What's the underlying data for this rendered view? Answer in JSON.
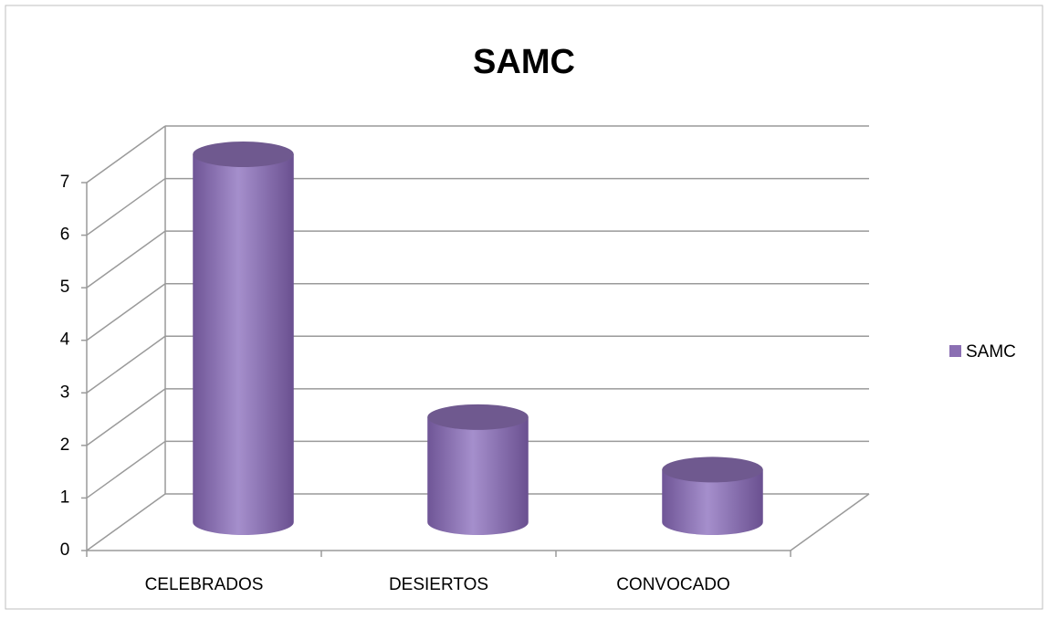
{
  "chart_data": {
    "type": "bar3d",
    "title": "SAMC",
    "categories": [
      "CELEBRADOS",
      "DESIERTOS",
      "CONVOCADO"
    ],
    "series": [
      {
        "name": "SAMC",
        "color": "#8b6fb3",
        "values": [
          7,
          2,
          1
        ]
      }
    ],
    "ylim": [
      0,
      7
    ],
    "yticks": [
      0,
      1,
      2,
      3,
      4,
      5,
      6,
      7
    ],
    "grid": true,
    "legend": "right"
  }
}
